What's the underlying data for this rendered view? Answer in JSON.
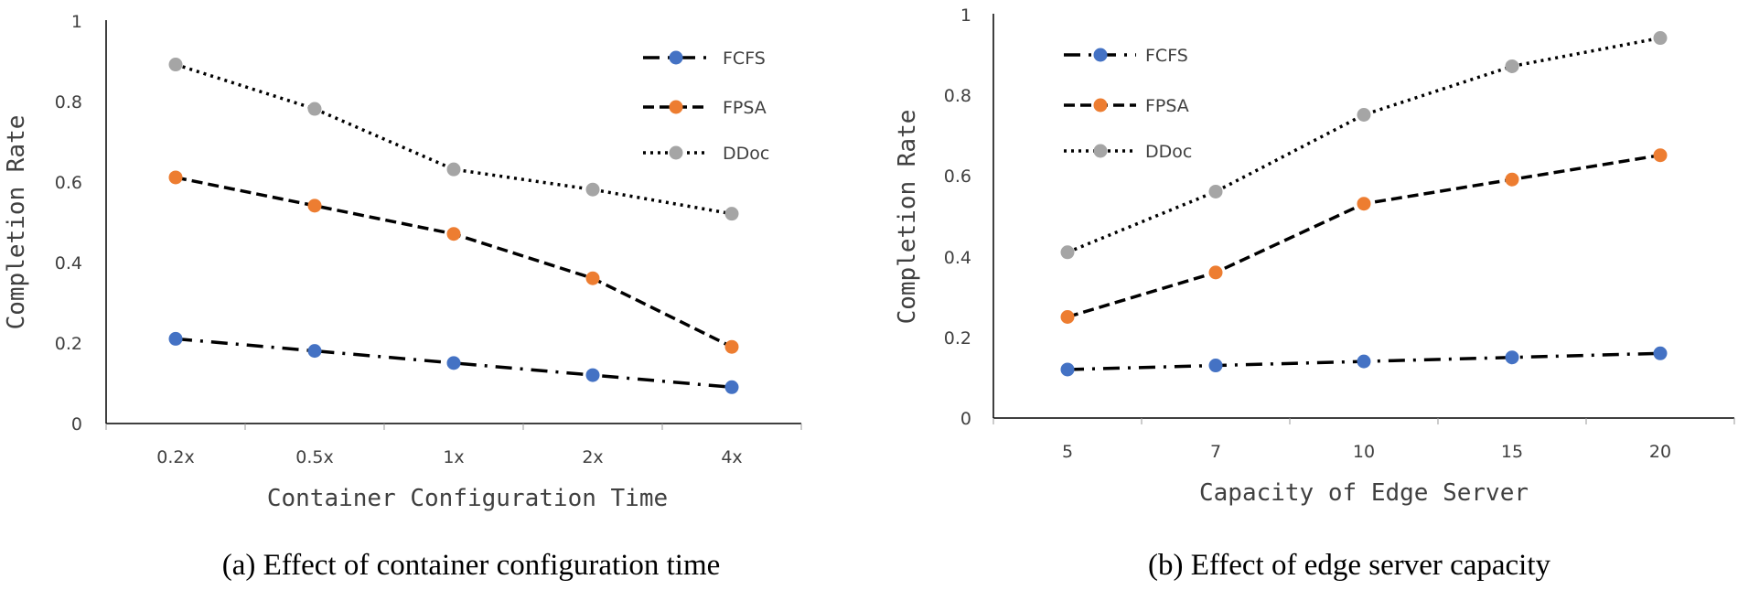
{
  "chart_data": [
    {
      "type": "line",
      "caption": "(a) Effect of container configuration time",
      "categories": [
        "0.2x",
        "0.5x",
        "1x",
        "2x",
        "4x"
      ],
      "series": [
        {
          "name": "FCFS",
          "color": "#4472c4",
          "dash": "dashdot",
          "values": [
            0.21,
            0.18,
            0.15,
            0.12,
            0.09
          ]
        },
        {
          "name": "FPSA",
          "color": "#ed7d31",
          "dash": "dash",
          "values": [
            0.61,
            0.54,
            0.47,
            0.36,
            0.19
          ]
        },
        {
          "name": "DDoc",
          "color": "#a5a5a5",
          "dash": "dot",
          "values": [
            0.89,
            0.78,
            0.63,
            0.58,
            0.52
          ]
        }
      ],
      "xlabel": "Container Configuration Time",
      "ylabel": "Completion Rate",
      "ylim": [
        0,
        1
      ],
      "yticks": [
        "0",
        "0.2",
        "0.4",
        "0.6",
        "0.8",
        "1"
      ],
      "legend": "top-right",
      "grid": false
    },
    {
      "type": "line",
      "caption": "(b) Effect of edge server capacity",
      "categories": [
        "5",
        "7",
        "10",
        "15",
        "20"
      ],
      "series": [
        {
          "name": "FCFS",
          "color": "#4472c4",
          "dash": "dashdot",
          "values": [
            0.12,
            0.13,
            0.14,
            0.15,
            0.16
          ]
        },
        {
          "name": "FPSA",
          "color": "#ed7d31",
          "dash": "dash",
          "values": [
            0.25,
            0.36,
            0.53,
            0.59,
            0.65
          ]
        },
        {
          "name": "DDoc",
          "color": "#a5a5a5",
          "dash": "dot",
          "values": [
            0.41,
            0.56,
            0.75,
            0.87,
            0.94
          ]
        }
      ],
      "xlabel": "Capacity of Edge Server",
      "ylabel": "Completion Rate",
      "ylim": [
        0,
        1
      ],
      "yticks": [
        "0",
        "0.2",
        "0.4",
        "0.6",
        "0.8",
        "1"
      ],
      "legend": "top-left",
      "grid": false
    }
  ]
}
